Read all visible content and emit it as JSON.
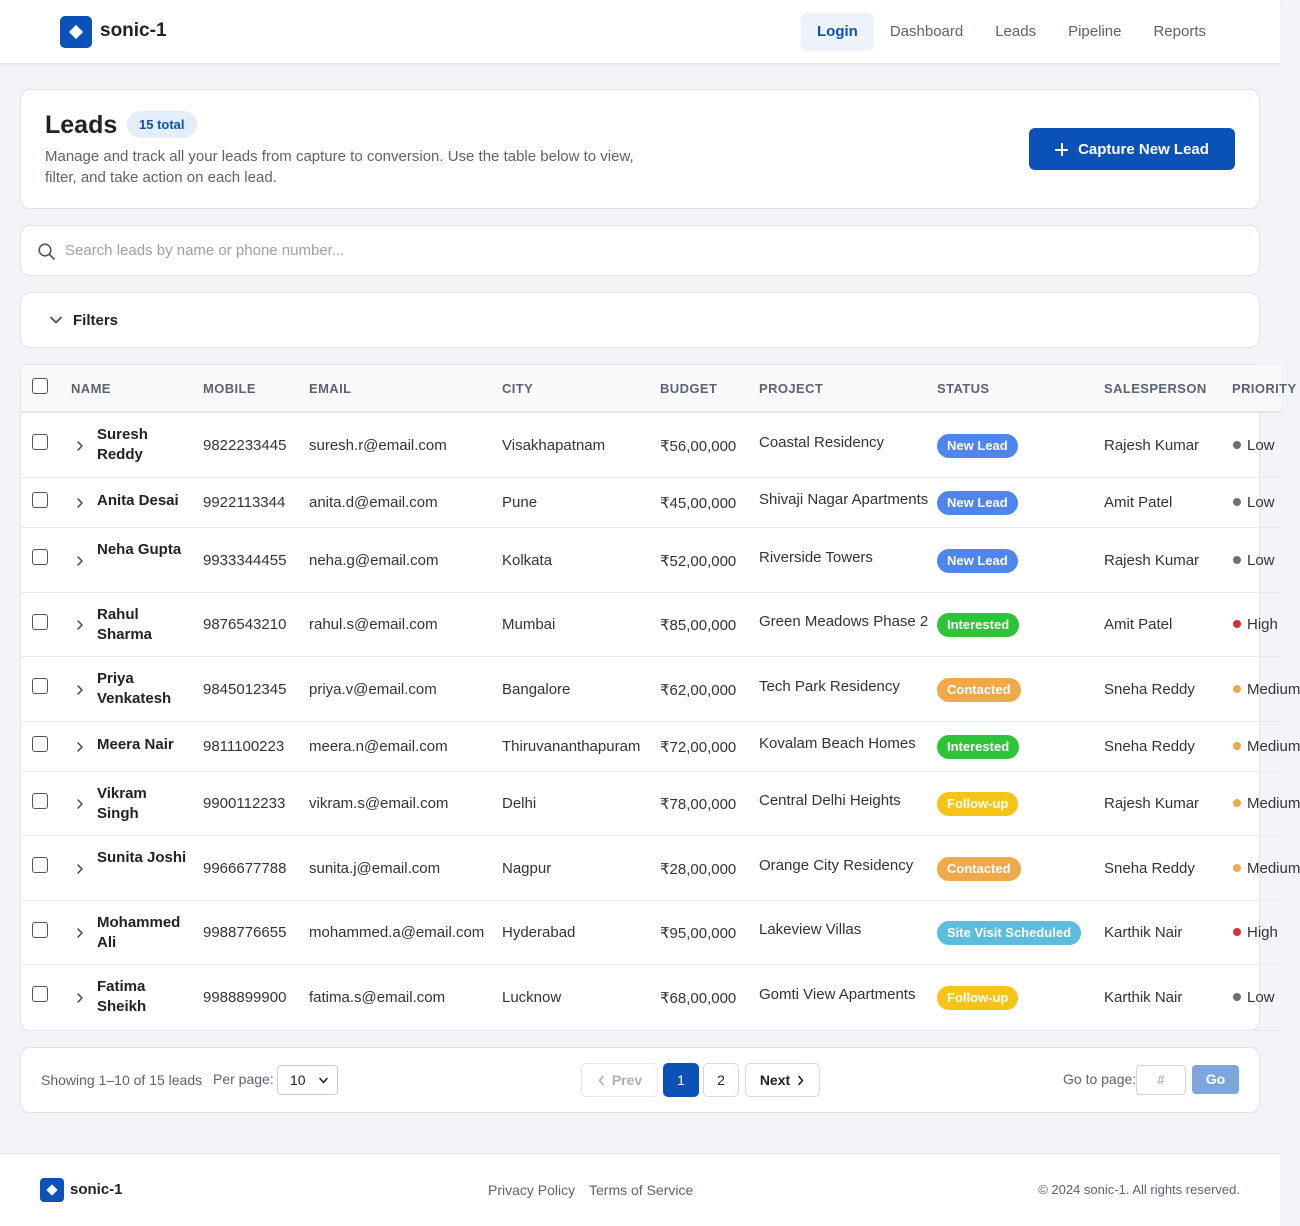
{
  "app": {
    "brand": "sonic-1"
  },
  "nav": [
    {
      "label": "Login",
      "active": true
    },
    {
      "label": "Dashboard",
      "active": false
    },
    {
      "label": "Leads",
      "active": false
    },
    {
      "label": "Pipeline",
      "active": false
    },
    {
      "label": "Reports",
      "active": false
    }
  ],
  "hero": {
    "title": "Leads",
    "badge": "15 total",
    "description": "Manage and track all your leads from capture to conversion. Use the table below to view, filter, and take action on each lead.",
    "capture_label": "Capture New Lead"
  },
  "search": {
    "placeholder": "Search leads by name or phone number..."
  },
  "filters": {
    "label": "Filters"
  },
  "table": {
    "columns": [
      "NAME",
      "MOBILE",
      "EMAIL",
      "CITY",
      "BUDGET",
      "PROJECT",
      "STATUS",
      "SALESPERSON",
      "PRIORITY"
    ],
    "rows": [
      {
        "name": "Suresh Reddy",
        "mobile": "9822233445",
        "email": "suresh.r@email.com",
        "city": "Visakhapatnam",
        "budget": "₹56,00,000",
        "project": "Coastal Residency",
        "status": "New Lead",
        "salesperson": "Rajesh Kumar",
        "priority": "Low"
      },
      {
        "name": "Anita Desai",
        "mobile": "9922113344",
        "email": "anita.d@email.com",
        "city": "Pune",
        "budget": "₹45,00,000",
        "project": "Shivaji Nagar Apartments",
        "status": "New Lead",
        "salesperson": "Amit Patel",
        "priority": "Low"
      },
      {
        "name": "Neha Gupta",
        "mobile": "9933344455",
        "email": "neha.g@email.com",
        "city": "Kolkata",
        "budget": "₹52,00,000",
        "project": "Riverside Towers",
        "status": "New Lead",
        "salesperson": "Rajesh Kumar",
        "priority": "Low"
      },
      {
        "name": "Rahul Sharma",
        "mobile": "9876543210",
        "email": "rahul.s@email.com",
        "city": "Mumbai",
        "budget": "₹85,00,000",
        "project": "Green Meadows Phase 2",
        "status": "Interested",
        "salesperson": "Amit Patel",
        "priority": "High"
      },
      {
        "name": "Priya Venkatesh",
        "mobile": "9845012345",
        "email": "priya.v@email.com",
        "city": "Bangalore",
        "budget": "₹62,00,000",
        "project": "Tech Park Residency",
        "status": "Contacted",
        "salesperson": "Sneha Reddy",
        "priority": "Medium"
      },
      {
        "name": "Meera Nair",
        "mobile": "9811100223",
        "email": "meera.n@email.com",
        "city": "Thiruvananthapuram",
        "budget": "₹72,00,000",
        "project": "Kovalam Beach Homes",
        "status": "Interested",
        "salesperson": "Sneha Reddy",
        "priority": "Medium"
      },
      {
        "name": "Vikram Singh",
        "mobile": "9900112233",
        "email": "vikram.s@email.com",
        "city": "Delhi",
        "budget": "₹78,00,000",
        "project": "Central Delhi Heights",
        "status": "Follow-up",
        "salesperson": "Rajesh Kumar",
        "priority": "Medium"
      },
      {
        "name": "Sunita Joshi",
        "mobile": "9966677788",
        "email": "sunita.j@email.com",
        "city": "Nagpur",
        "budget": "₹28,00,000",
        "project": "Orange City Residency",
        "status": "Contacted",
        "salesperson": "Sneha Reddy",
        "priority": "Medium"
      },
      {
        "name": "Mohammed Ali",
        "mobile": "9988776655",
        "email": "mohammed.a@email.com",
        "city": "Hyderabad",
        "budget": "₹95,00,000",
        "project": "Lakeview Villas",
        "status": "Site Visit Scheduled",
        "salesperson": "Karthik Nair",
        "priority": "High"
      },
      {
        "name": "Fatima Sheikh",
        "mobile": "9988899900",
        "email": "fatima.s@email.com",
        "city": "Lucknow",
        "budget": "₹68,00,000",
        "project": "Gomti View Apartments",
        "status": "Follow-up",
        "salesperson": "Karthik Nair",
        "priority": "Low"
      }
    ]
  },
  "status_colors": {
    "New Lead": "#4f86ee",
    "Interested": "#2ec43a",
    "Contacted": "#efa94a",
    "Follow-up": "#f6c418",
    "Site Visit Scheduled": "#5bbcdc"
  },
  "priority_colors": {
    "Low": "#6b6f76",
    "High": "#d9303a",
    "Medium": "#efa94a"
  },
  "pagination": {
    "info": "Showing 1–10 of 15 leads",
    "per_page_label": "Per page:",
    "per_page_value": "10",
    "prev_label": "Prev",
    "next_label": "Next",
    "pages": [
      "1",
      "2"
    ],
    "current_page": "1",
    "goto_label": "Go to page:",
    "goto_placeholder": "#",
    "go_label": "Go"
  },
  "footer": {
    "brand": "sonic-1",
    "privacy": "Privacy Policy",
    "terms": "Terms of Service",
    "copyright": "© 2024 sonic-1. All rights reserved."
  }
}
